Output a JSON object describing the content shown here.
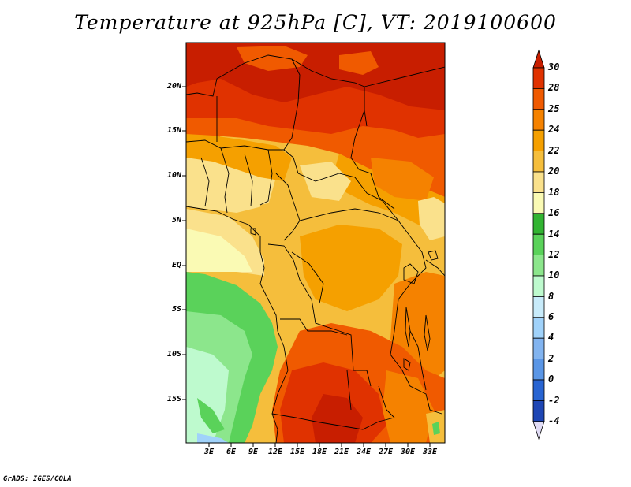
{
  "title": "Temperature at 925hPa [C], VT: 2019100600",
  "credit": "GrADS: IGES/COLA",
  "map": {
    "lat_labels": [
      "20N",
      "15N",
      "10N",
      "5N",
      "EQ",
      "5S",
      "10S",
      "15S"
    ],
    "lon_labels": [
      "3E",
      "6E",
      "9E",
      "12E",
      "15E",
      "18E",
      "21E",
      "24E",
      "27E",
      "30E",
      "33E"
    ]
  },
  "colorbar": {
    "labels": [
      "30",
      "28",
      "25",
      "24",
      "22",
      "20",
      "18",
      "16",
      "14",
      "12",
      "10",
      "8",
      "6",
      "4",
      "2",
      "0",
      "-2",
      "-4"
    ],
    "colors": [
      "#c81e00",
      "#e03200",
      "#f05a00",
      "#f58200",
      "#f5a000",
      "#f5be3c",
      "#fae18c",
      "#fafab4",
      "#32b432",
      "#5ad25a",
      "#8ce68c",
      "#beface",
      "#c8ebfa",
      "#a0d2fa",
      "#82b4f0",
      "#5a96e6",
      "#2864d2",
      "#1e46b4",
      "#0a1e78"
    ]
  }
}
